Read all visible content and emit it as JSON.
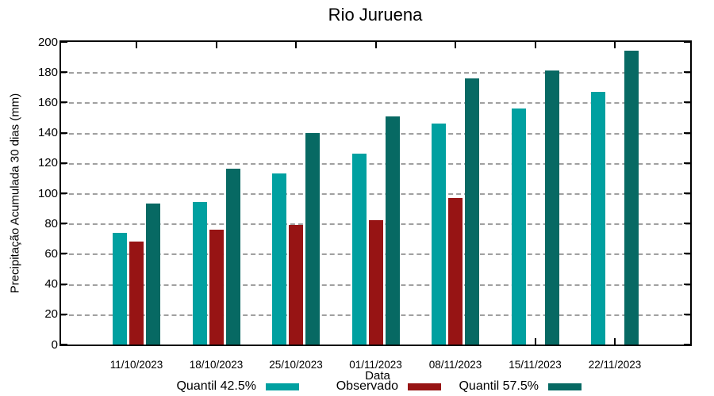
{
  "window": {
    "title": "Rio Juruena"
  },
  "chart_data": {
    "type": "bar",
    "title": "Rio Juruena",
    "xlabel": "Data",
    "ylabel": "Precipitação Acumulada 30 dias (mm)",
    "ylim": [
      0,
      200
    ],
    "ytick_step": 20,
    "grid": "dashed horizontal gridlines at every 20 units",
    "legend_position": "below",
    "categories": [
      "11/10/2023",
      "18/10/2023",
      "25/10/2023",
      "01/11/2023",
      "08/11/2023",
      "15/11/2023",
      "22/11/2023"
    ],
    "series": [
      {
        "name": "Quantil 42.5%",
        "color": "#00A0A0",
        "values": [
          74,
          94,
          113,
          126,
          146,
          156,
          167
        ]
      },
      {
        "name": "Observado",
        "color": "#971414",
        "values": [
          68,
          76,
          79,
          82,
          97,
          null,
          null
        ]
      },
      {
        "name": "Quantil 57.5%",
        "color": "#076963",
        "values": [
          93,
          116,
          140,
          151,
          176,
          181,
          194
        ]
      }
    ]
  }
}
